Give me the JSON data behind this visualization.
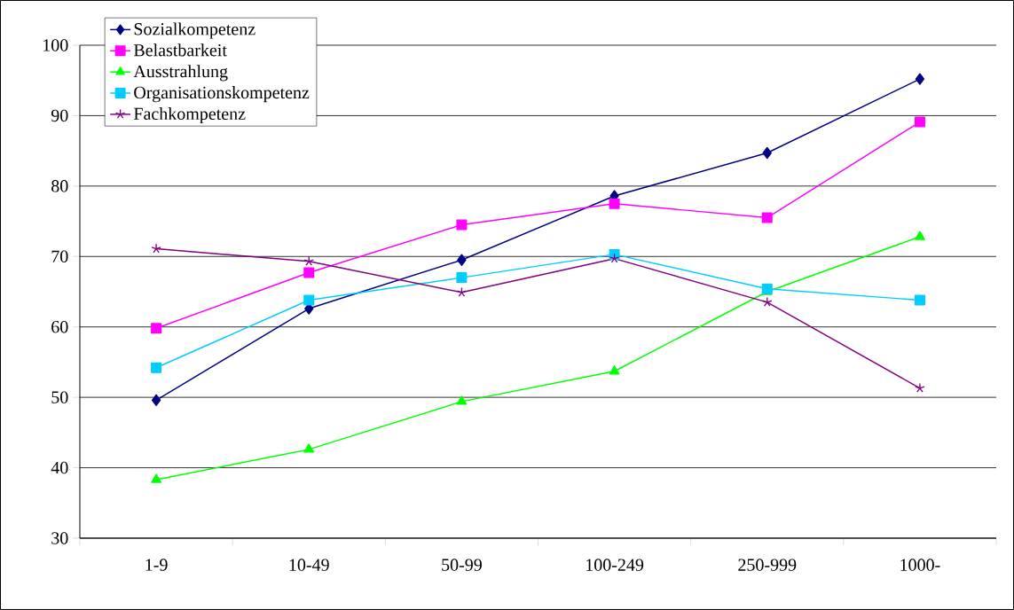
{
  "chart_data": {
    "type": "line",
    "categories": [
      "1-9",
      "10-49",
      "50-99",
      "100-249",
      "250-999",
      "1000-"
    ],
    "series": [
      {
        "name": "Sozialkompetenz",
        "color": "#000080",
        "marker": "diamond",
        "values": [
          49.6,
          62.6,
          69.5,
          78.6,
          84.7,
          95.2
        ]
      },
      {
        "name": "Belastbarkeit",
        "color": "#ff00ff",
        "marker": "square",
        "values": [
          59.8,
          67.7,
          74.5,
          77.5,
          75.5,
          89.1
        ]
      },
      {
        "name": "Ausstrahlung",
        "color": "#00ff00",
        "marker": "triangle",
        "values": [
          38.3,
          42.6,
          49.4,
          53.7,
          65.0,
          72.8
        ]
      },
      {
        "name": "Organisationskompetenz",
        "color": "#00ccff",
        "marker": "square",
        "values": [
          54.2,
          63.8,
          67.0,
          70.3,
          65.4,
          63.8
        ]
      },
      {
        "name": "Fachkompetenz",
        "color": "#800080",
        "marker": "cross",
        "values": [
          71.1,
          69.3,
          64.9,
          69.7,
          63.5,
          51.3
        ]
      }
    ],
    "ylim": [
      30,
      100
    ],
    "yticks": [
      30,
      40,
      50,
      60,
      70,
      80,
      90,
      100
    ],
    "grid": "y",
    "legend": "top left",
    "line_style": "solid"
  }
}
